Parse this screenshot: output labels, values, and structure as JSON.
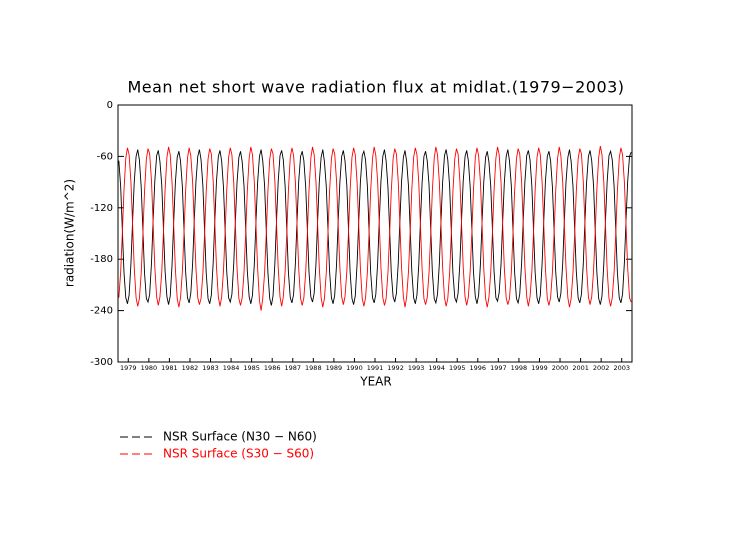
{
  "chart_data": {
    "type": "line",
    "title": "Mean net short wave radiation flux at midlat.(1979−2003)",
    "xlabel": "YEAR",
    "ylabel": "radiation(W/m^2)",
    "xlim": [
      1979,
      2004
    ],
    "ylim": [
      -300,
      0
    ],
    "yticks": [
      0,
      -60,
      -120,
      -180,
      -240,
      -300
    ],
    "xticks": [
      {
        "value": 1979.5,
        "label": "1979"
      },
      {
        "value": 1980.5,
        "label": "1980"
      },
      {
        "value": 1981.5,
        "label": "1981"
      },
      {
        "value": 1982.5,
        "label": "1982"
      },
      {
        "value": 1983.5,
        "label": "1983"
      },
      {
        "value": 1984.5,
        "label": "1984"
      },
      {
        "value": 1985.5,
        "label": "1985"
      },
      {
        "value": 1986.5,
        "label": "1986"
      },
      {
        "value": 1987.5,
        "label": "1987"
      },
      {
        "value": 1988.5,
        "label": "1988"
      },
      {
        "value": 1989.5,
        "label": "1989"
      },
      {
        "value": 1990.5,
        "label": "1990"
      },
      {
        "value": 1991.5,
        "label": "1991"
      },
      {
        "value": 1992.5,
        "label": "1992"
      },
      {
        "value": 1993.5,
        "label": "1993"
      },
      {
        "value": 1994.5,
        "label": "1994"
      },
      {
        "value": 1995.5,
        "label": "1995"
      },
      {
        "value": 1996.5,
        "label": "1996"
      },
      {
        "value": 1997.5,
        "label": "1997"
      },
      {
        "value": 1998.5,
        "label": "1998"
      },
      {
        "value": 1999.5,
        "label": "1999"
      },
      {
        "value": 2000.5,
        "label": "2000"
      },
      {
        "value": 2001.5,
        "label": "2001"
      },
      {
        "value": 2002.5,
        "label": "2002"
      },
      {
        "value": 2003.5,
        "label": "2003"
      }
    ],
    "x": [
      1979.04,
      1979.13,
      1979.21,
      1979.29,
      1979.38,
      1979.46,
      1979.54,
      1979.63,
      1979.71,
      1979.79,
      1979.88,
      1979.96,
      1980.04,
      1980.13,
      1980.21,
      1980.29,
      1980.38,
      1980.46,
      1980.54,
      1980.63,
      1980.71,
      1980.79,
      1980.88,
      1980.96,
      1981.04,
      1981.13,
      1981.21,
      1981.29,
      1981.38,
      1981.46,
      1981.54,
      1981.63,
      1981.71,
      1981.79,
      1981.88,
      1981.96,
      1982.04,
      1982.13,
      1982.21,
      1982.29,
      1982.38,
      1982.46,
      1982.54,
      1982.63,
      1982.71,
      1982.79,
      1982.88,
      1982.96,
      1983.04,
      1983.13,
      1983.21,
      1983.29,
      1983.38,
      1983.46,
      1983.54,
      1983.63,
      1983.71,
      1983.79,
      1983.88,
      1983.96,
      1984.04,
      1984.13,
      1984.21,
      1984.29,
      1984.38,
      1984.46,
      1984.54,
      1984.63,
      1984.71,
      1984.79,
      1984.88,
      1984.96,
      1985.04,
      1985.13,
      1985.21,
      1985.29,
      1985.38,
      1985.46,
      1985.54,
      1985.63,
      1985.71,
      1985.79,
      1985.88,
      1985.96,
      1986.04,
      1986.13,
      1986.21,
      1986.29,
      1986.38,
      1986.46,
      1986.54,
      1986.63,
      1986.71,
      1986.79,
      1986.88,
      1986.96,
      1987.04,
      1987.13,
      1987.21,
      1987.29,
      1987.38,
      1987.46,
      1987.54,
      1987.63,
      1987.71,
      1987.79,
      1987.88,
      1987.96,
      1988.04,
      1988.13,
      1988.21,
      1988.29,
      1988.38,
      1988.46,
      1988.54,
      1988.63,
      1988.71,
      1988.79,
      1988.88,
      1988.96,
      1989.04,
      1989.13,
      1989.21,
      1989.29,
      1989.38,
      1989.46,
      1989.54,
      1989.63,
      1989.71,
      1989.79,
      1989.88,
      1989.96,
      1990.04,
      1990.13,
      1990.21,
      1990.29,
      1990.38,
      1990.46,
      1990.54,
      1990.63,
      1990.71,
      1990.79,
      1990.88,
      1990.96,
      1991.04,
      1991.13,
      1991.21,
      1991.29,
      1991.38,
      1991.46,
      1991.54,
      1991.63,
      1991.71,
      1991.79,
      1991.88,
      1991.96,
      1992.04,
      1992.13,
      1992.21,
      1992.29,
      1992.38,
      1992.46,
      1992.54,
      1992.63,
      1992.71,
      1992.79,
      1992.88,
      1992.96,
      1993.04,
      1993.13,
      1993.21,
      1993.29,
      1993.38,
      1993.46,
      1993.54,
      1993.63,
      1993.71,
      1993.79,
      1993.88,
      1993.96,
      1994.04,
      1994.13,
      1994.21,
      1994.29,
      1994.38,
      1994.46,
      1994.54,
      1994.63,
      1994.71,
      1994.79,
      1994.88,
      1994.96,
      1995.04,
      1995.13,
      1995.21,
      1995.29,
      1995.38,
      1995.46,
      1995.54,
      1995.63,
      1995.71,
      1995.79,
      1995.88,
      1995.96,
      1996.04,
      1996.13,
      1996.21,
      1996.29,
      1996.38,
      1996.46,
      1996.54,
      1996.63,
      1996.71,
      1996.79,
      1996.88,
      1996.96,
      1997.04,
      1997.13,
      1997.21,
      1997.29,
      1997.38,
      1997.46,
      1997.54,
      1997.63,
      1997.71,
      1997.79,
      1997.88,
      1997.96,
      1998.04,
      1998.13,
      1998.21,
      1998.29,
      1998.38,
      1998.46,
      1998.54,
      1998.63,
      1998.71,
      1998.79,
      1998.88,
      1998.96,
      1999.04,
      1999.13,
      1999.21,
      1999.29,
      1999.38,
      1999.46,
      1999.54,
      1999.63,
      1999.71,
      1999.79,
      1999.88,
      1999.96,
      2000.04,
      2000.13,
      2000.21,
      2000.29,
      2000.38,
      2000.46,
      2000.54,
      2000.63,
      2000.71,
      2000.79,
      2000.88,
      2000.96,
      2001.04,
      2001.13,
      2001.21,
      2001.29,
      2001.38,
      2001.46,
      2001.54,
      2001.63,
      2001.71,
      2001.79,
      2001.88,
      2001.96,
      2002.04,
      2002.13,
      2002.21,
      2002.29,
      2002.38,
      2002.46,
      2002.54,
      2002.63,
      2002.71,
      2002.79,
      2002.88,
      2002.96,
      2003.04,
      2003.13,
      2003.21,
      2003.29,
      2003.38,
      2003.46,
      2003.54,
      2003.63,
      2003.71,
      2003.79,
      2003.88,
      2003.96
    ],
    "series": [
      {
        "name": "NSR Surface (N30 − N60)",
        "color": "#000000",
        "values": [
          -65,
          -95,
          -145,
          -195,
          -225,
          -232,
          -222,
          -185,
          -135,
          -90,
          -60,
          -52,
          -64,
          -96,
          -146,
          -196,
          -226,
          -230,
          -221,
          -184,
          -134,
          -89,
          -59,
          -53,
          -66,
          -94,
          -144,
          -194,
          -224,
          -233,
          -223,
          -186,
          -136,
          -91,
          -61,
          -54,
          -65,
          -95,
          -145,
          -195,
          -225,
          -231,
          -220,
          -185,
          -135,
          -90,
          -60,
          -52,
          -64,
          -95,
          -146,
          -196,
          -226,
          -232,
          -222,
          -184,
          -134,
          -89,
          -60,
          -53,
          -65,
          -96,
          -145,
          -195,
          -225,
          -230,
          -221,
          -185,
          -135,
          -90,
          -61,
          -54,
          -66,
          -95,
          -144,
          -194,
          -224,
          -232,
          -222,
          -186,
          -136,
          -91,
          -60,
          -52,
          -65,
          -94,
          -145,
          -195,
          -226,
          -234,
          -223,
          -185,
          -135,
          -90,
          -59,
          -53,
          -64,
          -95,
          -146,
          -196,
          -225,
          -231,
          -221,
          -184,
          -134,
          -89,
          -60,
          -54,
          -65,
          -96,
          -145,
          -195,
          -224,
          -230,
          -220,
          -185,
          -135,
          -90,
          -61,
          -52,
          -66,
          -95,
          -144,
          -194,
          -225,
          -232,
          -222,
          -186,
          -136,
          -91,
          -60,
          -53,
          -65,
          -94,
          -145,
          -195,
          -226,
          -233,
          -223,
          -185,
          -135,
          -90,
          -59,
          -54,
          -64,
          -95,
          -146,
          -196,
          -225,
          -231,
          -221,
          -184,
          -134,
          -89,
          -60,
          -52,
          -65,
          -96,
          -145,
          -195,
          -224,
          -230,
          -220,
          -185,
          -135,
          -90,
          -61,
          -53,
          -66,
          -95,
          -144,
          -194,
          -225,
          -232,
          -222,
          -186,
          -136,
          -91,
          -60,
          -54,
          -65,
          -94,
          -145,
          -195,
          -226,
          -231,
          -221,
          -185,
          -135,
          -90,
          -59,
          -52,
          -64,
          -95,
          -146,
          -196,
          -225,
          -230,
          -220,
          -184,
          -134,
          -89,
          -60,
          -53,
          -65,
          -96,
          -145,
          -195,
          -224,
          -232,
          -222,
          -185,
          -135,
          -90,
          -61,
          -54,
          -66,
          -95,
          -144,
          -194,
          -225,
          -229,
          -219,
          -186,
          -136,
          -91,
          -60,
          -52,
          -65,
          -94,
          -145,
          -195,
          -226,
          -231,
          -221,
          -185,
          -135,
          -90,
          -59,
          -53,
          -64,
          -95,
          -146,
          -196,
          -225,
          -232,
          -222,
          -184,
          -134,
          -89,
          -60,
          -54,
          -65,
          -96,
          -145,
          -195,
          -224,
          -230,
          -220,
          -185,
          -135,
          -90,
          -61,
          -52,
          -66,
          -95,
          -144,
          -194,
          -225,
          -231,
          -221,
          -186,
          -136,
          -91,
          -60,
          -53,
          -65,
          -94,
          -145,
          -195,
          -226,
          -233,
          -223,
          -185,
          -135,
          -90,
          -59,
          -54,
          -64,
          -95,
          -146,
          -196,
          -225,
          -231,
          -221,
          -184,
          -134,
          -89,
          -60,
          -55
        ]
      },
      {
        "name": "NSR Surface (S30 − S60)",
        "color": "#ff0000",
        "values": [
          -225,
          -195,
          -150,
          -100,
          -62,
          -50,
          -58,
          -90,
          -140,
          -190,
          -225,
          -235,
          -226,
          -196,
          -151,
          -101,
          -63,
          -51,
          -57,
          -89,
          -139,
          -189,
          -224,
          -234,
          -224,
          -194,
          -149,
          -99,
          -61,
          -49,
          -58,
          -91,
          -141,
          -191,
          -226,
          -236,
          -225,
          -195,
          -150,
          -100,
          -62,
          -50,
          -59,
          -90,
          -140,
          -190,
          -225,
          -233,
          -226,
          -196,
          -151,
          -101,
          -63,
          -51,
          -57,
          -89,
          -139,
          -189,
          -224,
          -235,
          -224,
          -194,
          -149,
          -99,
          -61,
          -50,
          -58,
          -91,
          -141,
          -191,
          -226,
          -234,
          -225,
          -195,
          -150,
          -100,
          -62,
          -49,
          -58,
          -90,
          -140,
          -190,
          -228,
          -240,
          -226,
          -196,
          -151,
          -101,
          -63,
          -51,
          -57,
          -89,
          -139,
          -189,
          -224,
          -235,
          -224,
          -194,
          -149,
          -99,
          -61,
          -50,
          -59,
          -91,
          -141,
          -191,
          -226,
          -234,
          -225,
          -195,
          -150,
          -100,
          -62,
          -49,
          -58,
          -90,
          -140,
          -190,
          -225,
          -236,
          -226,
          -196,
          -151,
          -101,
          -63,
          -51,
          -57,
          -89,
          -139,
          -189,
          -224,
          -233,
          -224,
          -194,
          -149,
          -99,
          -61,
          -50,
          -58,
          -91,
          -141,
          -191,
          -226,
          -235,
          -225,
          -195,
          -150,
          -100,
          -62,
          -49,
          -59,
          -90,
          -140,
          -190,
          -225,
          -234,
          -226,
          -196,
          -151,
          -101,
          -63,
          -51,
          -57,
          -89,
          -139,
          -189,
          -224,
          -236,
          -224,
          -194,
          -149,
          -99,
          -61,
          -50,
          -58,
          -91,
          -141,
          -191,
          -226,
          -233,
          -225,
          -195,
          -150,
          -100,
          -62,
          -49,
          -58,
          -90,
          -140,
          -190,
          -225,
          -235,
          -226,
          -196,
          -151,
          -101,
          -63,
          -51,
          -57,
          -89,
          -139,
          -189,
          -224,
          -234,
          -224,
          -194,
          -149,
          -99,
          -61,
          -50,
          -59,
          -91,
          -141,
          -191,
          -226,
          -236,
          -225,
          -195,
          -150,
          -100,
          -62,
          -49,
          -58,
          -90,
          -140,
          -190,
          -225,
          -233,
          -226,
          -196,
          -151,
          -101,
          -63,
          -51,
          -57,
          -89,
          -139,
          -189,
          -224,
          -235,
          -224,
          -194,
          -149,
          -99,
          -61,
          -50,
          -58,
          -91,
          -141,
          -191,
          -226,
          -234,
          -225,
          -195,
          -150,
          -100,
          -62,
          -49,
          -59,
          -90,
          -140,
          -190,
          -225,
          -236,
          -226,
          -196,
          -151,
          -101,
          -63,
          -51,
          -57,
          -89,
          -139,
          -189,
          -224,
          -233,
          -224,
          -194,
          -149,
          -99,
          -61,
          -48,
          -58,
          -91,
          -141,
          -191,
          -226,
          -235,
          -225,
          -195,
          -150,
          -100,
          -62,
          -50,
          -58,
          -90,
          -140,
          -190,
          -225,
          -230
        ]
      }
    ]
  }
}
